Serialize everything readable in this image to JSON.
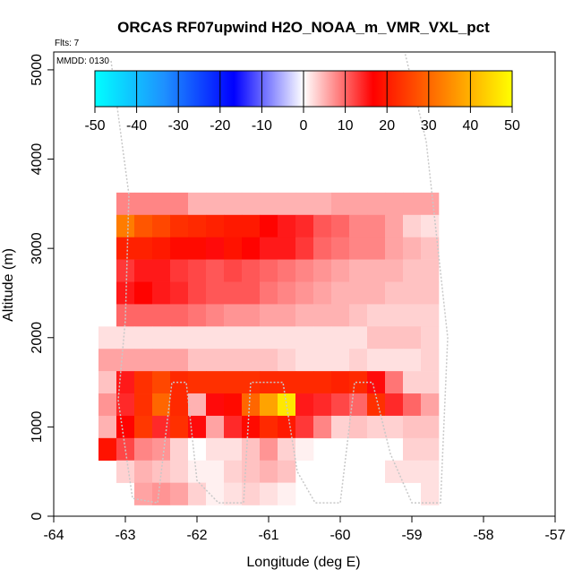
{
  "chart_data": {
    "type": "heatmap",
    "title": "ORCAS RF07upwind H2O_NOAA_m_VMR_VXL_pct",
    "flights_label": "Flts: 7",
    "date_label": "MMDD: 0130",
    "xlabel": "Longitude (deg E)",
    "ylabel": "Altitude (m)",
    "xlim": [
      -64,
      -57
    ],
    "ylim": [
      0,
      5200
    ],
    "xticks": [
      "-64",
      "-63",
      "-62",
      "-61",
      "-60",
      "-59",
      "-58",
      "-57"
    ],
    "yticks": [
      "0",
      "1000",
      "2000",
      "3000",
      "4000",
      "5000"
    ],
    "colorbar": {
      "range": [
        -50,
        50
      ],
      "ticks": [
        "-50",
        "-40",
        "-30",
        "-20",
        "-10",
        "0",
        "10",
        "20",
        "30",
        "40",
        "50"
      ],
      "colors": [
        "#00ffff",
        "#1e90ff",
        "#0000ff",
        "#ffffff",
        "#ff0000",
        "#ff7f00",
        "#ffff00"
      ]
    },
    "cell_size": {
      "lon": 0.25,
      "alt": 250
    },
    "cells": [
      [
        -63.0,
        3500,
        8
      ],
      [
        -62.75,
        3500,
        8
      ],
      [
        -62.5,
        3500,
        8
      ],
      [
        -62.25,
        3500,
        8
      ],
      [
        -62.0,
        3500,
        5
      ],
      [
        -61.75,
        3500,
        5
      ],
      [
        -61.5,
        3500,
        5
      ],
      [
        -61.25,
        3500,
        5
      ],
      [
        -61.0,
        3500,
        5
      ],
      [
        -60.75,
        3500,
        5
      ],
      [
        -60.5,
        3500,
        5
      ],
      [
        -60.25,
        3500,
        5
      ],
      [
        -60.0,
        3500,
        6
      ],
      [
        -59.75,
        3500,
        6
      ],
      [
        -59.5,
        3500,
        6
      ],
      [
        -59.25,
        3500,
        6
      ],
      [
        -59.0,
        3500,
        6
      ],
      [
        -58.75,
        3500,
        6
      ],
      [
        -63.0,
        3250,
        33
      ],
      [
        -62.75,
        3250,
        28
      ],
      [
        -62.5,
        3250,
        26
      ],
      [
        -62.25,
        3250,
        23
      ],
      [
        -62.0,
        3250,
        22
      ],
      [
        -61.75,
        3250,
        21
      ],
      [
        -61.5,
        3250,
        20
      ],
      [
        -61.25,
        3250,
        20
      ],
      [
        -61.0,
        3250,
        17
      ],
      [
        -60.75,
        3250,
        15
      ],
      [
        -60.5,
        3250,
        14
      ],
      [
        -60.25,
        3250,
        11
      ],
      [
        -60.0,
        3250,
        10
      ],
      [
        -59.75,
        3250,
        8
      ],
      [
        -59.5,
        3250,
        8
      ],
      [
        -59.25,
        3250,
        6
      ],
      [
        -59.0,
        3250,
        3
      ],
      [
        -58.75,
        3250,
        2
      ],
      [
        -63.0,
        3000,
        21
      ],
      [
        -62.75,
        3000,
        21
      ],
      [
        -62.5,
        3000,
        20
      ],
      [
        -62.25,
        3000,
        18
      ],
      [
        -62.0,
        3000,
        18
      ],
      [
        -61.75,
        3000,
        16
      ],
      [
        -61.5,
        3000,
        19
      ],
      [
        -61.25,
        3000,
        17
      ],
      [
        -61.0,
        3000,
        15
      ],
      [
        -60.75,
        3000,
        15
      ],
      [
        -60.5,
        3000,
        13
      ],
      [
        -60.25,
        3000,
        10
      ],
      [
        -60.0,
        3000,
        9
      ],
      [
        -59.75,
        3000,
        8
      ],
      [
        -59.5,
        3000,
        8
      ],
      [
        -59.25,
        3000,
        6
      ],
      [
        -59.0,
        3000,
        5
      ],
      [
        -58.75,
        3000,
        4
      ],
      [
        -63.0,
        2750,
        13
      ],
      [
        -62.75,
        2750,
        15
      ],
      [
        -62.5,
        2750,
        15
      ],
      [
        -62.25,
        2750,
        13
      ],
      [
        -62.0,
        2750,
        12
      ],
      [
        -61.75,
        2750,
        11
      ],
      [
        -61.5,
        2750,
        12
      ],
      [
        -61.25,
        2750,
        11
      ],
      [
        -61.0,
        2750,
        10
      ],
      [
        -60.75,
        2750,
        9
      ],
      [
        -60.5,
        2750,
        8
      ],
      [
        -60.25,
        2750,
        7
      ],
      [
        -60.0,
        2750,
        6
      ],
      [
        -59.75,
        2750,
        5
      ],
      [
        -59.5,
        2750,
        5
      ],
      [
        -59.25,
        2750,
        5
      ],
      [
        -59.0,
        2750,
        4
      ],
      [
        -58.75,
        2750,
        4
      ],
      [
        -63.0,
        2500,
        15
      ],
      [
        -62.75,
        2500,
        17
      ],
      [
        -62.5,
        2500,
        15
      ],
      [
        -62.25,
        2500,
        14
      ],
      [
        -62.0,
        2500,
        12
      ],
      [
        -61.75,
        2500,
        11
      ],
      [
        -61.5,
        2500,
        11
      ],
      [
        -61.25,
        2500,
        11
      ],
      [
        -61.0,
        2500,
        9
      ],
      [
        -60.75,
        2500,
        8
      ],
      [
        -60.5,
        2500,
        7
      ],
      [
        -60.25,
        2500,
        6
      ],
      [
        -60.0,
        2500,
        5
      ],
      [
        -59.75,
        2500,
        5
      ],
      [
        -59.5,
        2500,
        5
      ],
      [
        -59.25,
        2500,
        4
      ],
      [
        -59.0,
        2500,
        4
      ],
      [
        -58.75,
        2500,
        4
      ],
      [
        -63.0,
        2250,
        10
      ],
      [
        -62.75,
        2250,
        10
      ],
      [
        -62.5,
        2250,
        10
      ],
      [
        -62.25,
        2250,
        10
      ],
      [
        -62.0,
        2250,
        9
      ],
      [
        -61.75,
        2250,
        8
      ],
      [
        -61.5,
        2250,
        7
      ],
      [
        -61.25,
        2250,
        7
      ],
      [
        -61.0,
        2250,
        6
      ],
      [
        -60.75,
        2250,
        6
      ],
      [
        -60.5,
        2250,
        5
      ],
      [
        -60.25,
        2250,
        5
      ],
      [
        -60.0,
        2250,
        5
      ],
      [
        -59.75,
        2250,
        4
      ],
      [
        -59.5,
        2250,
        3
      ],
      [
        -59.25,
        2250,
        3
      ],
      [
        -59.0,
        2250,
        3
      ],
      [
        -58.75,
        2250,
        3
      ],
      [
        -63.25,
        2000,
        2
      ],
      [
        -63.0,
        2000,
        2
      ],
      [
        -62.75,
        2000,
        2
      ],
      [
        -62.5,
        2000,
        2
      ],
      [
        -62.25,
        2000,
        2
      ],
      [
        -62.0,
        2000,
        2
      ],
      [
        -61.75,
        2000,
        2
      ],
      [
        -61.5,
        2000,
        2
      ],
      [
        -61.25,
        2000,
        2
      ],
      [
        -61.0,
        2000,
        2
      ],
      [
        -60.75,
        2000,
        2
      ],
      [
        -60.5,
        2000,
        2
      ],
      [
        -60.25,
        2000,
        2
      ],
      [
        -60.0,
        2000,
        2
      ],
      [
        -59.75,
        2000,
        2
      ],
      [
        -59.5,
        2000,
        4
      ],
      [
        -59.25,
        2000,
        4
      ],
      [
        -59.0,
        2000,
        4
      ],
      [
        -58.75,
        2000,
        3
      ],
      [
        -63.25,
        1750,
        6
      ],
      [
        -63.0,
        1750,
        6
      ],
      [
        -62.75,
        1750,
        6
      ],
      [
        -62.5,
        1750,
        6
      ],
      [
        -62.25,
        1750,
        6
      ],
      [
        -62.0,
        1750,
        4
      ],
      [
        -61.75,
        1750,
        4
      ],
      [
        -61.5,
        1750,
        4
      ],
      [
        -61.25,
        1750,
        4
      ],
      [
        -61.0,
        1750,
        4
      ],
      [
        -60.75,
        1750,
        3
      ],
      [
        -60.5,
        1750,
        2
      ],
      [
        -60.25,
        1750,
        2
      ],
      [
        -60.0,
        1750,
        2
      ],
      [
        -59.75,
        1750,
        3
      ],
      [
        -59.5,
        1750,
        2
      ],
      [
        -59.25,
        1750,
        2
      ],
      [
        -59.0,
        1750,
        2
      ],
      [
        -58.75,
        1750,
        3
      ],
      [
        -63.25,
        1500,
        4
      ],
      [
        -63.0,
        1500,
        15
      ],
      [
        -62.75,
        1500,
        23
      ],
      [
        -62.5,
        1500,
        26
      ],
      [
        -62.25,
        1500,
        22
      ],
      [
        -62.0,
        1500,
        23
      ],
      [
        -61.75,
        1500,
        23
      ],
      [
        -61.5,
        1500,
        23
      ],
      [
        -61.25,
        1500,
        23
      ],
      [
        -61.0,
        1500,
        22
      ],
      [
        -60.75,
        1500,
        22
      ],
      [
        -60.5,
        1500,
        22
      ],
      [
        -60.25,
        1500,
        22
      ],
      [
        -60.0,
        1500,
        21
      ],
      [
        -59.75,
        1500,
        22
      ],
      [
        -59.5,
        1500,
        16
      ],
      [
        -59.25,
        1500,
        9
      ],
      [
        -59.0,
        1500,
        3
      ],
      [
        -58.75,
        1500,
        3
      ],
      [
        -63.25,
        1250,
        7
      ],
      [
        -63.0,
        1250,
        14
      ],
      [
        -62.75,
        1250,
        23
      ],
      [
        -62.5,
        1250,
        30
      ],
      [
        -62.25,
        1250,
        22
      ],
      [
        -62.0,
        1250,
        5
      ],
      [
        -61.75,
        1250,
        16
      ],
      [
        -61.5,
        1250,
        18
      ],
      [
        -61.25,
        1250,
        30
      ],
      [
        -61.0,
        1250,
        38
      ],
      [
        -60.75,
        1250,
        47
      ],
      [
        -60.5,
        1250,
        15
      ],
      [
        -60.25,
        1250,
        14
      ],
      [
        -60.0,
        1250,
        12
      ],
      [
        -59.75,
        1250,
        10
      ],
      [
        -59.5,
        1250,
        23
      ],
      [
        -59.25,
        1250,
        14
      ],
      [
        -59.0,
        1250,
        10
      ],
      [
        -58.75,
        1250,
        6
      ],
      [
        -63.25,
        1000,
        5
      ],
      [
        -63.0,
        1000,
        17
      ],
      [
        -62.75,
        1000,
        24
      ],
      [
        -62.5,
        1000,
        14
      ],
      [
        -62.25,
        1000,
        23
      ],
      [
        -62.0,
        1000,
        16
      ],
      [
        -61.75,
        1000,
        6
      ],
      [
        -61.5,
        1000,
        14
      ],
      [
        -61.25,
        1000,
        18
      ],
      [
        -61.0,
        1000,
        22
      ],
      [
        -60.75,
        1000,
        20
      ],
      [
        -60.5,
        1000,
        13
      ],
      [
        -60.25,
        1000,
        8
      ],
      [
        -60.0,
        1000,
        3
      ],
      [
        -59.75,
        1000,
        4
      ],
      [
        -59.5,
        1000,
        3
      ],
      [
        -59.25,
        1000,
        3
      ],
      [
        -59.0,
        1000,
        4
      ],
      [
        -58.75,
        1000,
        4
      ],
      [
        -63.25,
        750,
        19
      ],
      [
        -63.0,
        750,
        12
      ],
      [
        -62.75,
        750,
        8
      ],
      [
        -62.5,
        750,
        7
      ],
      [
        -62.25,
        750,
        3
      ],
      [
        -62.0,
        750,
        0
      ],
      [
        -61.75,
        750,
        2
      ],
      [
        -61.5,
        750,
        2
      ],
      [
        -61.25,
        750,
        4
      ],
      [
        -61.0,
        750,
        7
      ],
      [
        -60.75,
        750,
        3
      ],
      [
        -60.5,
        750,
        1
      ],
      [
        -59.0,
        750,
        3
      ],
      [
        -58.75,
        750,
        3
      ],
      [
        -63.0,
        500,
        3
      ],
      [
        -62.75,
        500,
        5
      ],
      [
        -62.5,
        500,
        4
      ],
      [
        -62.25,
        500,
        3
      ],
      [
        -62.0,
        500,
        1
      ],
      [
        -61.75,
        500,
        1
      ],
      [
        -61.5,
        500,
        3
      ],
      [
        -61.25,
        500,
        4
      ],
      [
        -61.0,
        500,
        5
      ],
      [
        -60.75,
        500,
        4
      ],
      [
        -59.25,
        500,
        2
      ],
      [
        -59.0,
        500,
        2
      ],
      [
        -58.75,
        500,
        2
      ],
      [
        -62.75,
        250,
        6
      ],
      [
        -62.5,
        250,
        7
      ],
      [
        -62.25,
        250,
        6
      ],
      [
        -62.0,
        250,
        3
      ],
      [
        -61.75,
        250,
        1
      ],
      [
        -61.5,
        250,
        2
      ],
      [
        -61.25,
        250,
        3
      ],
      [
        -61.0,
        250,
        2
      ],
      [
        -60.75,
        250,
        1
      ],
      [
        -58.75,
        250,
        2
      ]
    ],
    "flight_track": [
      [
        -63.2,
        5100
      ],
      [
        -62.95,
        3600
      ],
      [
        -63.0,
        2200
      ],
      [
        -63.1,
        1300
      ],
      [
        -62.9,
        200
      ],
      [
        -62.55,
        150
      ],
      [
        -62.35,
        1500
      ],
      [
        -62.15,
        1500
      ],
      [
        -62.0,
        400
      ],
      [
        -61.7,
        150
      ],
      [
        -61.35,
        150
      ],
      [
        -61.25,
        1500
      ],
      [
        -60.8,
        1500
      ],
      [
        -60.6,
        500
      ],
      [
        -60.35,
        150
      ],
      [
        -60.0,
        150
      ],
      [
        -59.8,
        1500
      ],
      [
        -59.55,
        1500
      ],
      [
        -59.3,
        700
      ],
      [
        -59.0,
        150
      ],
      [
        -58.6,
        150
      ],
      [
        -58.5,
        2000
      ],
      [
        -58.8,
        4200
      ],
      [
        -59.1,
        5200
      ]
    ]
  }
}
